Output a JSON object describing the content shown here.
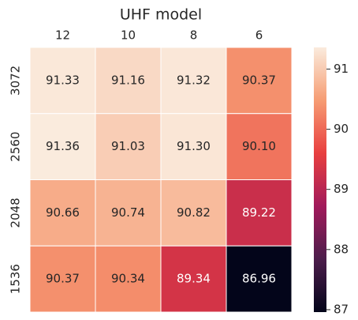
{
  "chart_data": {
    "type": "heatmap",
    "xlabel": "UHF model",
    "x_categories": [
      "12",
      "10",
      "8",
      "6"
    ],
    "y_categories": [
      "3072",
      "2560",
      "2048",
      "1536"
    ],
    "values": [
      [
        91.33,
        91.16,
        91.32,
        90.37
      ],
      [
        91.36,
        91.03,
        91.3,
        90.1
      ],
      [
        90.66,
        90.74,
        90.82,
        89.22
      ],
      [
        90.37,
        90.34,
        89.34,
        86.96
      ]
    ],
    "value_labels": [
      [
        "91.33",
        "91.16",
        "91.32",
        "90.37"
      ],
      [
        "91.36",
        "91.03",
        "91.30",
        "90.10"
      ],
      [
        "90.66",
        "90.74",
        "90.82",
        "89.22"
      ],
      [
        "90.37",
        "90.34",
        "89.34",
        "86.96"
      ]
    ],
    "colormap": "rocket",
    "clim": [
      86.96,
      91.36
    ],
    "colorbar_ticks": [
      87,
      88,
      89,
      90,
      91
    ]
  }
}
